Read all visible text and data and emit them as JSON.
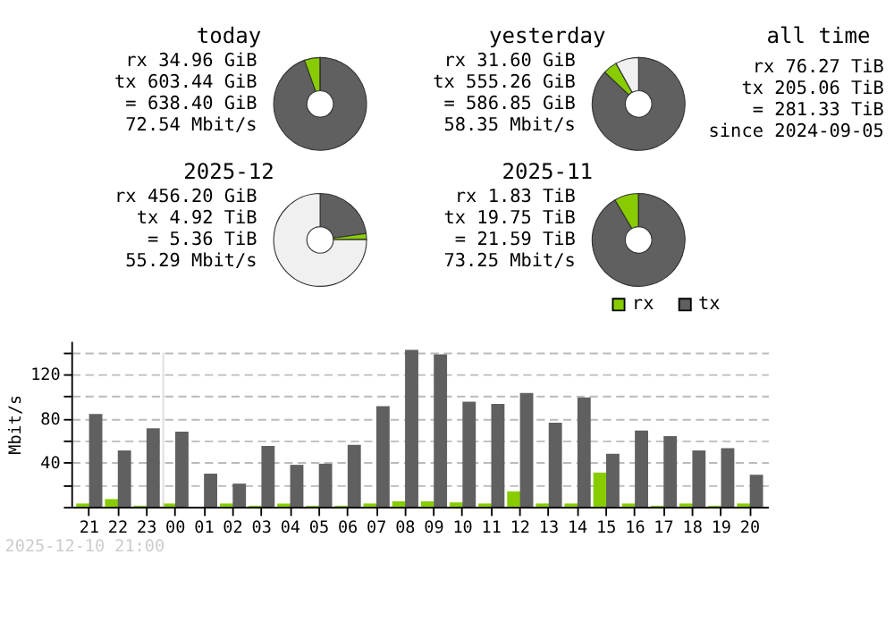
{
  "chart_data": [
    {
      "type": "donut",
      "title": "today",
      "categories": [
        null,
        null,
        null
      ],
      "values": [
        94.52,
        5.48,
        0
      ],
      "colors": [
        "#606060",
        "#88cc00",
        "#f0f0f0"
      ],
      "annotations": [
        "rx 34.96 GiB",
        "tx 603.44 GiB",
        "= 638.40 GiB",
        "72.54 Mbit/s"
      ]
    },
    {
      "type": "donut",
      "title": "yesterday",
      "categories": [
        null,
        null,
        null
      ],
      "values": [
        86.98,
        4.95,
        8.07
      ],
      "colors": [
        "#606060",
        "#88cc00",
        "#f0f0f0"
      ],
      "annotations": [
        "rx 31.60 GiB",
        "tx 555.26 GiB",
        "= 586.85 GiB",
        "58.35 Mbit/s"
      ]
    },
    {
      "type": "donut",
      "title": "2025-12",
      "categories": [
        null,
        null,
        null
      ],
      "values": [
        22.79,
        2.06,
        75.15
      ],
      "colors": [
        "#606060",
        "#88cc00",
        "#f0f0f0"
      ],
      "annotations": [
        "rx 456.20 GiB",
        "tx 4.92 TiB",
        "= 5.36 TiB",
        "55.29 Mbit/s"
      ]
    },
    {
      "type": "donut",
      "title": "2025-11",
      "categories": [
        null,
        null,
        null
      ],
      "values": [
        91.52,
        8.48,
        0
      ],
      "colors": [
        "#606060",
        "#88cc00",
        "#f0f0f0"
      ],
      "annotations": [
        "rx 1.83 TiB",
        "tx 19.75 TiB",
        "= 21.59 TiB",
        "73.25 Mbit/s"
      ]
    },
    {
      "type": "other",
      "title": "all time",
      "annotations": [
        "rx 76.27 TiB",
        "tx 205.06 TiB",
        "= 281.33 TiB",
        "since 2024-09-05"
      ]
    },
    {
      "type": "bar",
      "ylabel": "Mbit/s",
      "legend": "top right",
      "grid": "y",
      "categories": [
        "21",
        "22",
        "23",
        "00",
        "01",
        "02",
        "03",
        "04",
        "05",
        "06",
        "07",
        "08",
        "09",
        "10",
        "11",
        "12",
        "13",
        "14",
        "15",
        "16",
        "17",
        "18",
        "19",
        "20"
      ],
      "ylim": [
        0,
        150
      ],
      "yticks": [
        {
          "value": 0,
          "label": null
        },
        {
          "value": 20,
          "label": null
        },
        40,
        {
          "value": 60,
          "label": null
        },
        80,
        {
          "value": 100,
          "label": null
        },
        120,
        {
          "value": 140,
          "label": null
        }
      ],
      "ref_lines": [
        {
          "axis": "x",
          "value": "00",
          "color": "#dddddd"
        }
      ],
      "annotations": [
        "2025-12-10 21:00"
      ],
      "series": [
        {
          "name": "rx",
          "color": "#88cc00",
          "values": [
            3,
            7,
            1,
            3,
            0,
            3,
            1,
            3,
            1,
            1,
            3,
            5,
            5,
            4,
            3,
            14,
            3,
            3,
            31,
            3,
            1,
            3,
            1,
            3
          ]
        },
        {
          "name": "tx",
          "color": "#606060",
          "values": [
            84,
            51,
            71,
            68,
            30,
            21,
            55,
            38,
            39,
            56,
            91,
            142,
            138,
            95,
            93,
            103,
            76,
            99,
            48,
            69,
            64,
            51,
            53,
            29
          ]
        }
      ]
    }
  ]
}
